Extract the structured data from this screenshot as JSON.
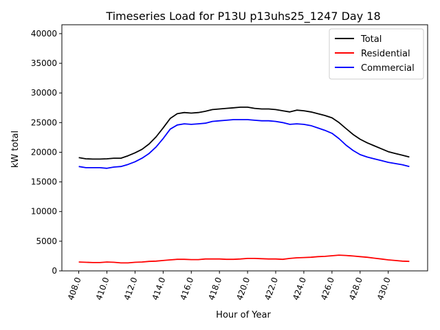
{
  "chart_data": {
    "type": "line",
    "title": "Timeseries Load for P13U p13uhs25_1247  Day 18",
    "xlabel": "Hour of Year",
    "ylabel": "kW total",
    "xlim": [
      406.8,
      432.8
    ],
    "ylim": [
      0,
      41500
    ],
    "xticks": [
      408,
      410,
      412,
      414,
      416,
      418,
      420,
      422,
      424,
      426,
      428,
      430
    ],
    "xtick_labels": [
      "408.0",
      "410.0",
      "412.0",
      "414.0",
      "416.0",
      "418.0",
      "420.0",
      "422.0",
      "424.0",
      "426.0",
      "428.0",
      "430.0"
    ],
    "yticks": [
      0,
      5000,
      10000,
      15000,
      20000,
      25000,
      30000,
      35000,
      40000
    ],
    "ytick_labels": [
      "0",
      "5000",
      "10000",
      "15000",
      "20000",
      "25000",
      "30000",
      "35000",
      "40000"
    ],
    "legend_position": "top-right",
    "x": [
      408.0,
      408.5,
      409.0,
      409.5,
      410.0,
      410.5,
      411.0,
      411.5,
      412.0,
      412.5,
      413.0,
      413.5,
      414.0,
      414.5,
      415.0,
      415.5,
      416.0,
      416.5,
      417.0,
      417.5,
      418.0,
      418.5,
      419.0,
      419.5,
      420.0,
      420.5,
      421.0,
      421.5,
      422.0,
      422.5,
      423.0,
      423.5,
      424.0,
      424.5,
      425.0,
      425.5,
      426.0,
      426.5,
      427.0,
      427.5,
      428.0,
      428.5,
      429.0,
      429.5,
      430.0,
      430.5,
      431.0,
      431.5
    ],
    "series": [
      {
        "name": "Total",
        "color": "#000000",
        "values": [
          19100,
          18900,
          18850,
          18850,
          18900,
          19000,
          19000,
          19400,
          19900,
          20500,
          21400,
          22600,
          24100,
          25700,
          26500,
          26700,
          26600,
          26700,
          26900,
          27200,
          27300,
          27400,
          27500,
          27600,
          27600,
          27400,
          27300,
          27300,
          27200,
          27000,
          26800,
          27100,
          27000,
          26800,
          26500,
          26200,
          25800,
          25000,
          24000,
          23000,
          22200,
          21600,
          21100,
          20600,
          20100,
          19800,
          19500,
          19200
        ]
      },
      {
        "name": "Residential",
        "color": "#ff0000",
        "values": [
          1500,
          1450,
          1400,
          1400,
          1500,
          1450,
          1350,
          1350,
          1450,
          1500,
          1600,
          1650,
          1750,
          1850,
          1950,
          1950,
          1900,
          1900,
          2000,
          2000,
          2000,
          1950,
          1950,
          2000,
          2100,
          2100,
          2050,
          2000,
          2000,
          1950,
          2100,
          2200,
          2250,
          2300,
          2400,
          2450,
          2550,
          2650,
          2600,
          2500,
          2400,
          2300,
          2150,
          2000,
          1850,
          1750,
          1650,
          1600
        ]
      },
      {
        "name": "Commercial",
        "color": "#0000ff",
        "values": [
          17600,
          17400,
          17400,
          17400,
          17300,
          17500,
          17600,
          17950,
          18400,
          19000,
          19800,
          20900,
          22300,
          23900,
          24600,
          24800,
          24700,
          24800,
          24900,
          25200,
          25300,
          25400,
          25500,
          25500,
          25500,
          25400,
          25300,
          25300,
          25200,
          25000,
          24700,
          24800,
          24700,
          24500,
          24100,
          23700,
          23200,
          22300,
          21200,
          20300,
          19600,
          19200,
          18900,
          18600,
          18300,
          18100,
          17900,
          17600
        ]
      }
    ]
  }
}
